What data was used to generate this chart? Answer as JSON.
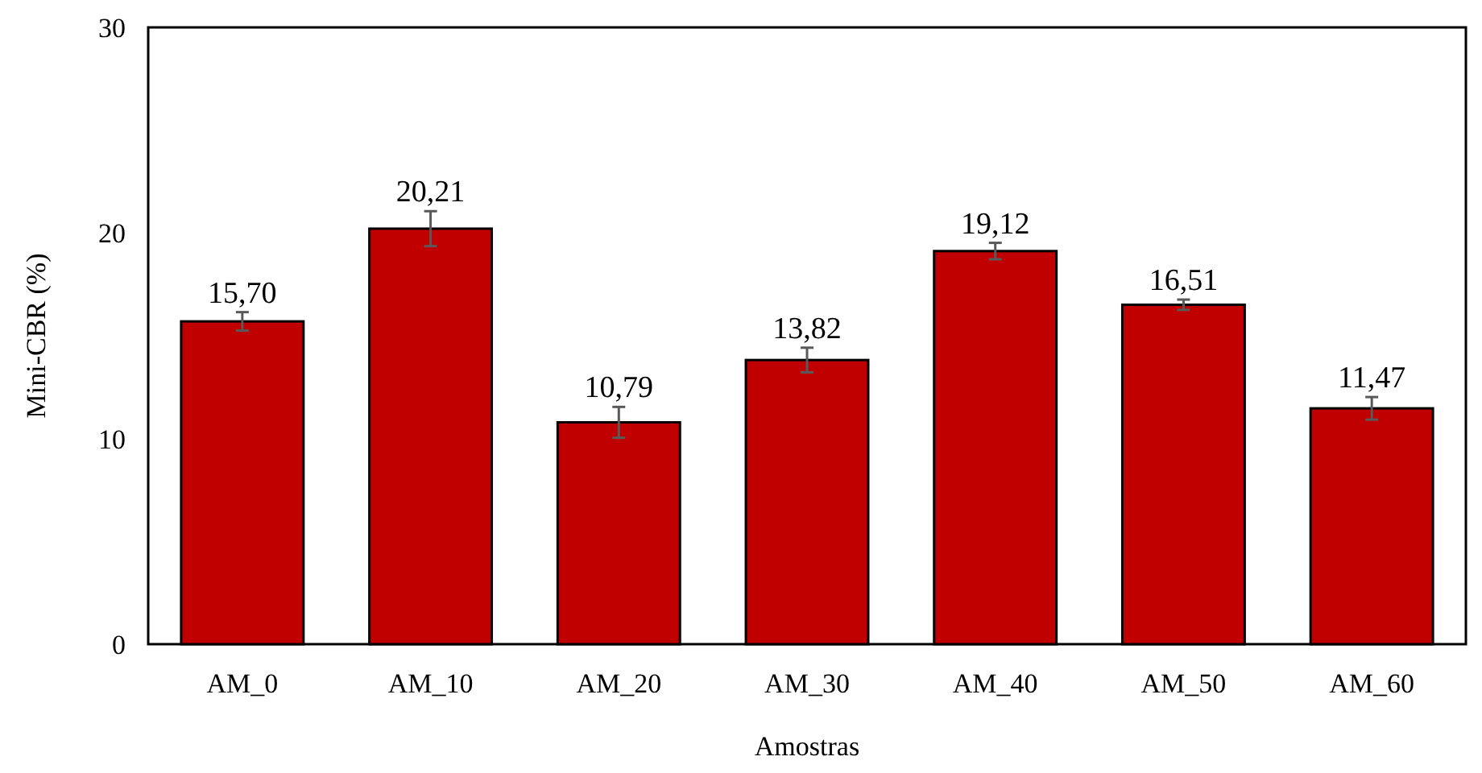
{
  "chart_data": {
    "type": "bar",
    "xlabel": "Amostras",
    "ylabel": "Mini-CBR (%)",
    "categories": [
      "AM_0",
      "AM_10",
      "AM_20",
      "AM_30",
      "AM_40",
      "AM_50",
      "AM_60"
    ],
    "values": [
      15.7,
      20.21,
      10.79,
      13.82,
      19.12,
      16.51,
      11.47
    ],
    "value_labels": [
      "15,70",
      "20,21",
      "10,79",
      "13,82",
      "19,12",
      "16,51",
      "11,47"
    ],
    "errors": [
      0.45,
      0.85,
      0.75,
      0.6,
      0.4,
      0.25,
      0.55
    ],
    "color": "#c00000",
    "ylim": [
      0,
      30
    ],
    "yticks": [
      0,
      10,
      20,
      30
    ],
    "grid": false
  }
}
